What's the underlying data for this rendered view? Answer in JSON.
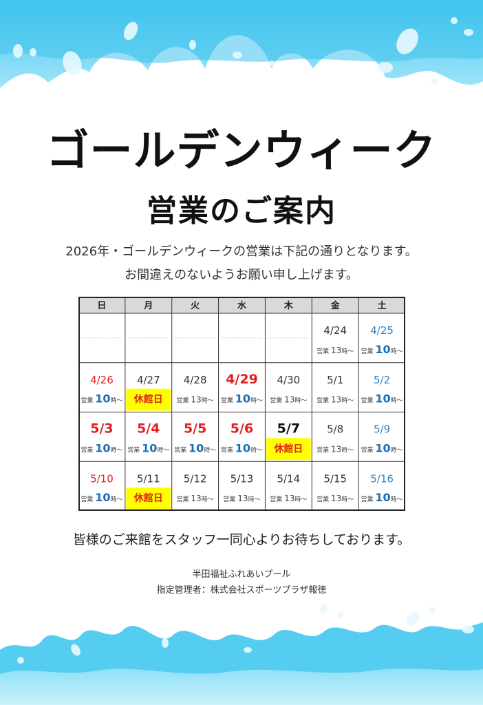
{
  "title_line1": "ゴールデンウィーク",
  "title_line2": "営業のご案内",
  "intro_line1": "2026年・ゴールデンウィークの営業は下記の通りとなります。",
  "intro_line2": "お間違えのないようお願い申し上げます。",
  "calendar": {
    "weekdays": [
      "日",
      "月",
      "火",
      "水",
      "木",
      "金",
      "土"
    ],
    "weeks": [
      [
        null,
        null,
        null,
        null,
        null,
        {
          "date": "4/24",
          "status": "営業",
          "hour": "13",
          "suffix": "時～",
          "style": "weekday"
        },
        {
          "date": "4/25",
          "status": "営業",
          "hour": "10",
          "suffix": "時～",
          "style": "saturday"
        }
      ],
      [
        {
          "date": "4/26",
          "status": "営業",
          "hour": "10",
          "suffix": "時～",
          "style": "sunday"
        },
        {
          "date": "4/27",
          "status": "休館日",
          "style": "closed"
        },
        {
          "date": "4/28",
          "status": "営業",
          "hour": "13",
          "suffix": "時～",
          "style": "weekday"
        },
        {
          "date": "4/29",
          "status": "営業",
          "hour": "10",
          "suffix": "時～",
          "style": "holiday"
        },
        {
          "date": "4/30",
          "status": "営業",
          "hour": "13",
          "suffix": "時～",
          "style": "weekday"
        },
        {
          "date": "5/1",
          "status": "営業",
          "hour": "13",
          "suffix": "時～",
          "style": "weekday"
        },
        {
          "date": "5/2",
          "status": "営業",
          "hour": "10",
          "suffix": "時～",
          "style": "saturday"
        }
      ],
      [
        {
          "date": "5/3",
          "status": "営業",
          "hour": "10",
          "suffix": "時～",
          "style": "holiday"
        },
        {
          "date": "5/4",
          "status": "営業",
          "hour": "10",
          "suffix": "時～",
          "style": "holiday"
        },
        {
          "date": "5/5",
          "status": "営業",
          "hour": "10",
          "suffix": "時～",
          "style": "holiday"
        },
        {
          "date": "5/6",
          "status": "営業",
          "hour": "10",
          "suffix": "時～",
          "style": "holiday"
        },
        {
          "date": "5/7",
          "status": "休館日",
          "style": "closed-bold"
        },
        {
          "date": "5/8",
          "status": "営業",
          "hour": "13",
          "suffix": "時～",
          "style": "weekday"
        },
        {
          "date": "5/9",
          "status": "営業",
          "hour": "10",
          "suffix": "時～",
          "style": "saturday"
        }
      ],
      [
        {
          "date": "5/10",
          "status": "営業",
          "hour": "10",
          "suffix": "時～",
          "style": "sunday"
        },
        {
          "date": "5/11",
          "status": "休館日",
          "style": "closed"
        },
        {
          "date": "5/12",
          "status": "営業",
          "hour": "13",
          "suffix": "時～",
          "style": "weekday"
        },
        {
          "date": "5/13",
          "status": "営業",
          "hour": "13",
          "suffix": "時～",
          "style": "weekday"
        },
        {
          "date": "5/14",
          "status": "営業",
          "hour": "13",
          "suffix": "時～",
          "style": "weekday"
        },
        {
          "date": "5/15",
          "status": "営業",
          "hour": "13",
          "suffix": "時～",
          "style": "weekday"
        },
        {
          "date": "5/16",
          "status": "営業",
          "hour": "10",
          "suffix": "時～",
          "style": "saturday"
        }
      ]
    ]
  },
  "closing": "皆様のご来館をスタッフ一同心よりお待ちしております。",
  "footer_line1": "半田福祉ふれあいプール",
  "footer_line2": "指定管理者：株式会社スポーツプラザ報徳",
  "colors": {
    "holiday_red": "#e02020",
    "saturday_blue": "#2a86c8",
    "hour_blue": "#1b6fb6",
    "closed_yellow": "#ffff00",
    "header_gray": "#d9d9d9",
    "water_light": "#bfeefb",
    "water_mid": "#6fd6f4",
    "water_deep": "#3ec4ee"
  }
}
